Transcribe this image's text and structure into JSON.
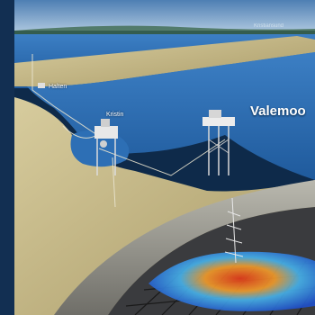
{
  "labels": {
    "halten": "Halten",
    "kristin": "Kristin",
    "valemon": "Valemoo",
    "far": "Kristiansund"
  },
  "colors": {
    "sky": "#6d96c2",
    "sea": "#2f6fb4",
    "sand": "#c9bd8c",
    "cliff": "#a6a59d",
    "seismic_hot": "#e23b1a",
    "seismic_cold": "#1f4fc9"
  }
}
